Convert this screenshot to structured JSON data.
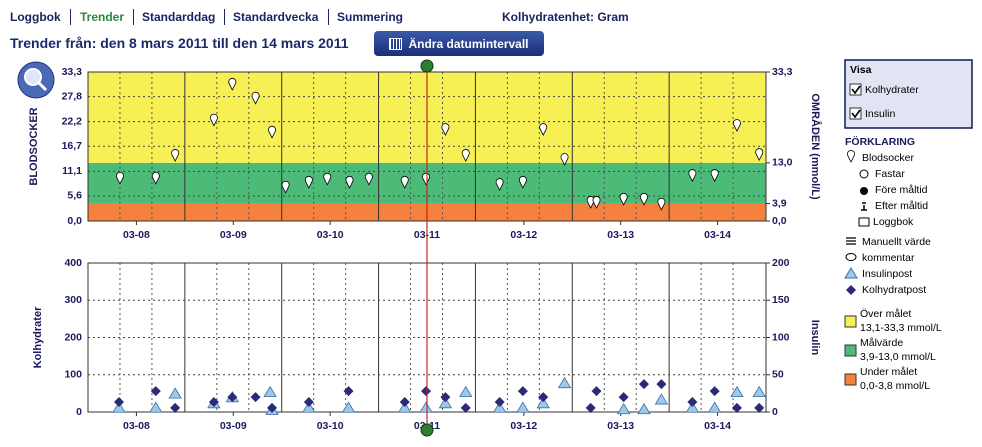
{
  "nav": {
    "tabs": [
      "Loggbok",
      "Trender",
      "Standarddag",
      "Standardvecka",
      "Summering"
    ],
    "unit": "Kolhydratenhet: Gram"
  },
  "header": {
    "title": "Trender från: den 8 mars 2011 till den 14 mars 2011",
    "button": "Ändra datumintervall"
  },
  "panel": {
    "title": "Visa",
    "options": [
      "Kolhydrater",
      "Insulin"
    ]
  },
  "legend": {
    "title": "FÖRKLARING",
    "items": [
      "Fastar",
      "Före måltid",
      "Efter måltid",
      "Loggbok",
      "Manuellt värde",
      "kommentar"
    ],
    "ranges": [
      {
        "label": "Över målet",
        "range": "13,1-33,3 mmol/L",
        "color": "#f6f055"
      },
      {
        "label": "Målvärde",
        "range": "3,9-13,0 mmol/L",
        "color": "#4cbb78"
      },
      {
        "label": "Under målet",
        "range": "0,0-3,8 mmol/L",
        "color": "#f4823e"
      }
    ]
  },
  "chart_data": [
    {
      "type": "scatter",
      "y_label": "BLODSOCKER",
      "y2_label": "OMRÅDEN (mmol/L)",
      "xlim": [
        0,
        7
      ],
      "xticks": [
        {
          "value": 0.5,
          "label": "03-08"
        },
        {
          "value": 1.5,
          "label": "03-09"
        },
        {
          "value": 2.5,
          "label": "03-10"
        },
        {
          "value": 3.5,
          "label": "03-11"
        },
        {
          "value": 4.5,
          "label": "03-12"
        },
        {
          "value": 5.5,
          "label": "03-13"
        },
        {
          "value": 6.5,
          "label": "03-14"
        }
      ],
      "ylim": [
        0,
        33.3
      ],
      "yticks": [
        {
          "value": 0,
          "label": "0,0"
        },
        {
          "value": 5.6,
          "label": "5,6"
        },
        {
          "value": 11.1,
          "label": "11,1"
        },
        {
          "value": 16.7,
          "label": "16,7"
        },
        {
          "value": 22.2,
          "label": "22,2"
        },
        {
          "value": 27.8,
          "label": "27,8"
        },
        {
          "value": 33.3,
          "label": "33,3"
        }
      ],
      "y2lim": [
        0,
        33.3
      ],
      "y2ticks": [
        {
          "value": 0,
          "label": "0,0"
        },
        {
          "value": 3.9,
          "label": "3,9"
        },
        {
          "value": 13,
          "label": "13,0"
        },
        {
          "value": 33.3,
          "label": "33,3"
        }
      ],
      "bands": [
        {
          "ylim": [
            0,
            3.9
          ],
          "color": "#f4823e"
        },
        {
          "ylim": [
            3.9,
            13
          ],
          "color": "#4cbb78"
        },
        {
          "ylim": [
            13,
            33.3
          ],
          "color": "#f6f055"
        }
      ],
      "series": [
        {
          "name": "Blodsocker",
          "marker": "pin",
          "color": "#ffffff",
          "x": [
            0.33,
            0.7,
            0.9,
            1.3,
            1.49,
            1.73,
            1.9,
            2.04,
            2.28,
            2.47,
            2.7,
            2.9,
            3.27,
            3.49,
            3.69,
            3.9,
            4.25,
            4.49,
            4.7,
            4.92,
            5.19,
            5.25,
            5.53,
            5.74,
            5.92,
            6.24,
            6.47,
            6.7,
            6.93
          ],
          "values": [
            8.3,
            8.3,
            13.4,
            21.3,
            29.3,
            26.2,
            18.6,
            6.3,
            7.4,
            8.1,
            7.4,
            8.1,
            7.4,
            8.1,
            19.2,
            13.4,
            6.9,
            7.4,
            19.2,
            12.5,
            2.9,
            2.9,
            3.6,
            3.6,
            2.5,
            8.9,
            8.9,
            20.1,
            13.6
          ]
        }
      ]
    },
    {
      "type": "scatter",
      "y_label": "Kolhydrater",
      "y2_label": "Insulin",
      "xlim": [
        0,
        7
      ],
      "xticks": [
        {
          "value": 0.5,
          "label": "03-08"
        },
        {
          "value": 1.5,
          "label": "03-09"
        },
        {
          "value": 2.5,
          "label": "03-10"
        },
        {
          "value": 3.5,
          "label": "03-11"
        },
        {
          "value": 4.5,
          "label": "03-12"
        },
        {
          "value": 5.5,
          "label": "03-13"
        },
        {
          "value": 6.5,
          "label": "03-14"
        }
      ],
      "ylim": [
        0,
        400
      ],
      "yticks": [
        0,
        100,
        200,
        300,
        400
      ],
      "y2lim": [
        0,
        200
      ],
      "y2ticks": [
        0,
        50,
        100,
        150,
        200
      ],
      "series": [
        {
          "name": "Insulinpost",
          "marker": "triangle",
          "color": "#9cc8ea",
          "axis": "y2",
          "x": [
            0.32,
            0.7,
            0.9,
            1.3,
            1.49,
            1.88,
            1.9,
            2.28,
            2.69,
            3.27,
            3.49,
            3.69,
            3.9,
            4.25,
            4.49,
            4.7,
            4.92,
            5.53,
            5.74,
            5.92,
            6.24,
            6.47,
            6.7,
            6.93
          ],
          "values": [
            5,
            5,
            24,
            11,
            19,
            26,
            2,
            5,
            5,
            5,
            5,
            11,
            26,
            5,
            5,
            11,
            38,
            3,
            3,
            16,
            5,
            5,
            26,
            26
          ]
        },
        {
          "name": "Kolhydratpost",
          "marker": "diamond",
          "color": "#2b2a78",
          "x": [
            0.32,
            0.7,
            0.9,
            1.3,
            1.49,
            1.73,
            1.9,
            2.28,
            2.69,
            3.27,
            3.49,
            3.69,
            3.9,
            4.25,
            4.49,
            4.7,
            5.19,
            5.25,
            5.53,
            5.74,
            5.92,
            6.24,
            6.47,
            6.7,
            6.93
          ],
          "values": [
            27,
            56,
            11,
            27,
            40,
            40,
            11,
            27,
            56,
            27,
            56,
            40,
            11,
            27,
            56,
            40,
            11,
            56,
            40,
            75,
            75,
            27,
            56,
            11,
            11
          ]
        }
      ]
    }
  ]
}
